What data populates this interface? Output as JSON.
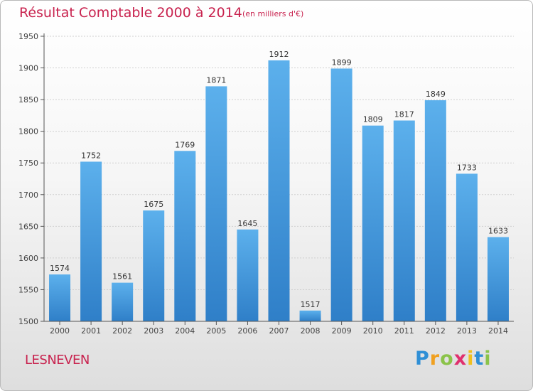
{
  "title": "Résultat Comptable 2000 à 2014",
  "subtitle": "(en milliers d'€)",
  "commune": "LESNEVEN",
  "brand": {
    "letters": [
      "P",
      "r",
      "o",
      "x",
      "i",
      "t",
      "i"
    ],
    "colors": [
      "#2f8fd6",
      "#f0a020",
      "#8bc34a",
      "#e0306e",
      "#f0c020",
      "#2f8fd6",
      "#8bc34a"
    ]
  },
  "colors": {
    "bar_top": "#5cb0ec",
    "bar_bottom": "#2f7fc8",
    "axis": "#555555",
    "grid": "#d0d0d0",
    "accent": "#c8224e"
  },
  "chart_data": {
    "type": "bar",
    "title": "Résultat Comptable 2000 à 2014",
    "categories": [
      "2000",
      "2001",
      "2002",
      "2003",
      "2004",
      "2005",
      "2006",
      "2007",
      "2008",
      "2009",
      "2010",
      "2011",
      "2012",
      "2013",
      "2014"
    ],
    "values": [
      1574,
      1752,
      1561,
      1675,
      1769,
      1871,
      1645,
      1912,
      1517,
      1899,
      1809,
      1817,
      1849,
      1733,
      1633
    ],
    "ylim": [
      1500,
      1950
    ],
    "yticks": [
      1500,
      1550,
      1600,
      1650,
      1700,
      1750,
      1800,
      1850,
      1900,
      1950
    ],
    "grid": true
  }
}
